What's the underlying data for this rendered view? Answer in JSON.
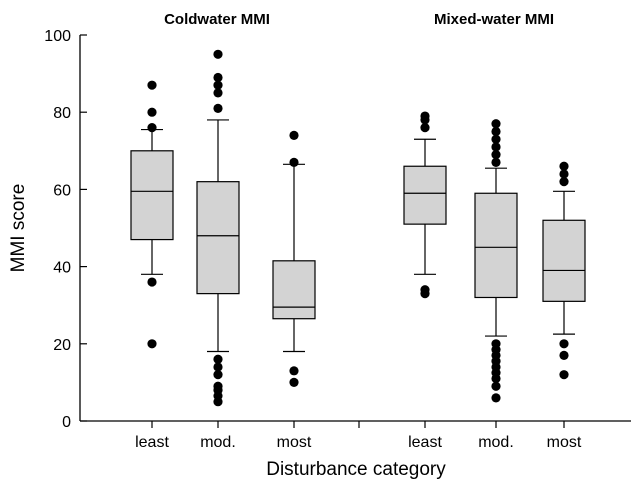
{
  "chart_data": {
    "type": "boxplot",
    "xlabel": "Disturbance category",
    "ylabel": "MMI score",
    "ylim": [
      0,
      100
    ],
    "yticks": [
      0,
      20,
      40,
      60,
      80,
      100
    ],
    "grid": false,
    "box_color": "#d3d3d3",
    "groups": [
      {
        "title": "Coldwater MMI",
        "boxes": [
          {
            "category": "least",
            "whisker_low": 38,
            "q1": 47,
            "median": 59.5,
            "q3": 70,
            "whisker_high": 75.5,
            "outliers": [
              20,
              36,
              76,
              80,
              87
            ]
          },
          {
            "category": "mod.",
            "whisker_low": 18,
            "q1": 33,
            "median": 48,
            "q3": 62,
            "whisker_high": 78,
            "outliers": [
              5,
              6.5,
              8,
              9,
              12,
              14,
              16,
              81,
              85,
              87,
              89,
              95
            ]
          },
          {
            "category": "most",
            "whisker_low": 18,
            "q1": 26.5,
            "median": 29.5,
            "q3": 41.5,
            "whisker_high": 66.5,
            "outliers": [
              10,
              13,
              67,
              74
            ]
          }
        ]
      },
      {
        "title": "Mixed-water MMI",
        "boxes": [
          {
            "category": "least",
            "whisker_low": 38,
            "q1": 51,
            "median": 59,
            "q3": 66,
            "whisker_high": 73,
            "outliers": [
              33,
              34,
              76,
              78,
              79
            ]
          },
          {
            "category": "mod.",
            "whisker_low": 22,
            "q1": 32,
            "median": 45,
            "q3": 59,
            "whisker_high": 65.5,
            "outliers": [
              6,
              9,
              11,
              12.5,
              14,
              15.5,
              17,
              18.5,
              20,
              67,
              69,
              71,
              73,
              75,
              77
            ]
          },
          {
            "category": "most",
            "whisker_low": 22.5,
            "q1": 31,
            "median": 39,
            "q3": 52,
            "whisker_high": 59.5,
            "outliers": [
              12,
              17,
              20,
              62,
              64,
              66
            ]
          }
        ]
      }
    ]
  }
}
